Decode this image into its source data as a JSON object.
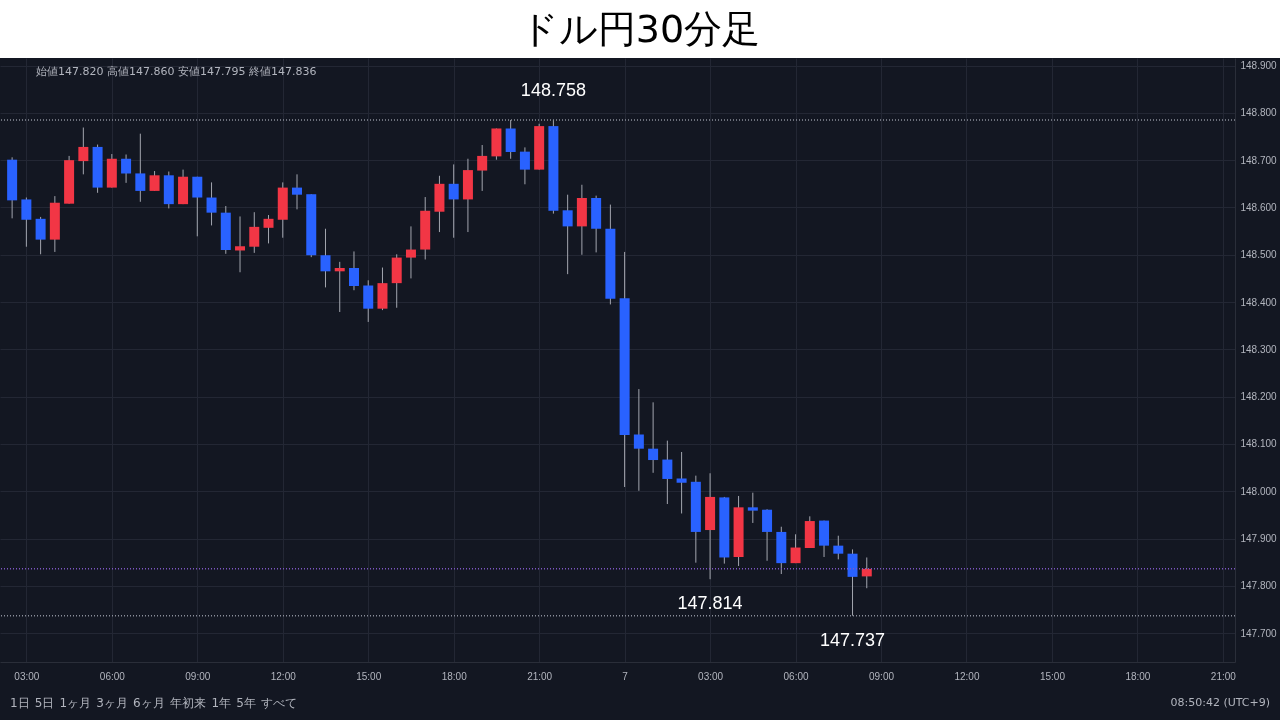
{
  "chart_data": {
    "type": "candlestick",
    "title": "ドル円30分足",
    "categories": [
      null,
      "03:00",
      null,
      null,
      null,
      null,
      null,
      "06:00",
      null,
      null,
      null,
      null,
      null,
      "09:00",
      null,
      null,
      null,
      null,
      null,
      "12:00",
      null,
      null,
      null,
      null,
      null,
      "15:00",
      null,
      null,
      null,
      null,
      null,
      "18:00",
      null,
      null,
      null,
      null,
      null,
      "21:00",
      null,
      null,
      null,
      null,
      null,
      "7",
      null,
      null,
      null,
      null,
      null,
      "03:00",
      null,
      null,
      null,
      null,
      null,
      "06:00",
      null,
      null,
      null,
      null,
      null,
      "09:00",
      null,
      null,
      null,
      null,
      null,
      "12:00",
      null,
      null,
      null,
      null,
      null,
      "15:00",
      null,
      null,
      null,
      null,
      null,
      "18:00",
      null,
      null,
      null,
      null,
      null,
      "21:00"
    ],
    "ohlc": [
      [
        148.701,
        148.706,
        148.577,
        148.615
      ],
      [
        148.617,
        148.621,
        148.517,
        148.574
      ],
      [
        148.576,
        148.58,
        148.501,
        148.532
      ],
      [
        148.532,
        148.624,
        148.506,
        148.61
      ],
      [
        148.608,
        148.709,
        148.608,
        148.7
      ],
      [
        148.698,
        148.769,
        148.67,
        148.728
      ],
      [
        148.728,
        148.733,
        148.631,
        148.642
      ],
      [
        148.642,
        148.713,
        148.642,
        148.703
      ],
      [
        148.703,
        148.712,
        148.652,
        148.672
      ],
      [
        148.672,
        148.756,
        148.612,
        148.635
      ],
      [
        148.635,
        148.677,
        148.635,
        148.668
      ],
      [
        148.668,
        148.676,
        148.598,
        148.607
      ],
      [
        148.607,
        148.68,
        148.607,
        148.665
      ],
      [
        148.665,
        148.665,
        148.539,
        148.621
      ],
      [
        148.621,
        148.653,
        148.562,
        148.589
      ],
      [
        148.589,
        148.603,
        148.502,
        148.51
      ],
      [
        148.509,
        148.581,
        148.463,
        148.518
      ],
      [
        148.517,
        148.59,
        148.504,
        148.559
      ],
      [
        148.557,
        148.584,
        148.524,
        148.576
      ],
      [
        148.574,
        148.653,
        148.536,
        148.642
      ],
      [
        148.642,
        148.67,
        148.596,
        148.627
      ],
      [
        148.628,
        148.628,
        148.495,
        148.499
      ],
      [
        148.499,
        148.555,
        148.431,
        148.465
      ],
      [
        148.465,
        148.485,
        148.379,
        148.472
      ],
      [
        148.472,
        148.507,
        148.425,
        148.434
      ],
      [
        148.435,
        148.446,
        148.358,
        148.386
      ],
      [
        148.386,
        148.473,
        148.383,
        148.44
      ],
      [
        148.44,
        148.501,
        148.388,
        148.494
      ],
      [
        148.494,
        148.56,
        148.45,
        148.511
      ],
      [
        148.511,
        148.622,
        148.49,
        148.593
      ],
      [
        148.591,
        148.667,
        148.548,
        148.65
      ],
      [
        148.65,
        148.691,
        148.536,
        148.617
      ],
      [
        148.617,
        148.703,
        148.548,
        148.679
      ],
      [
        148.678,
        148.732,
        148.635,
        148.709
      ],
      [
        148.708,
        148.767,
        148.701,
        148.767
      ],
      [
        148.767,
        148.785,
        148.703,
        148.717
      ],
      [
        148.718,
        148.727,
        148.649,
        148.68
      ],
      [
        148.68,
        148.777,
        148.68,
        148.772
      ],
      [
        148.772,
        148.785,
        148.587,
        148.593
      ],
      [
        148.594,
        148.627,
        148.459,
        148.56
      ],
      [
        148.56,
        148.648,
        148.5,
        148.62
      ],
      [
        148.62,
        148.625,
        148.505,
        148.555
      ],
      [
        148.555,
        148.606,
        148.395,
        148.407
      ],
      [
        148.408,
        148.506,
        148.009,
        148.119
      ],
      [
        148.12,
        148.216,
        148.001,
        148.09
      ],
      [
        148.09,
        148.188,
        148.039,
        148.066
      ],
      [
        148.067,
        148.107,
        147.973,
        148.026
      ],
      [
        148.027,
        148.083,
        147.953,
        148.018
      ],
      [
        148.02,
        148.033,
        147.849,
        147.914
      ],
      [
        147.918,
        148.038,
        147.814,
        147.988
      ],
      [
        147.987,
        147.988,
        147.847,
        147.86
      ],
      [
        147.861,
        147.99,
        147.842,
        147.966
      ],
      [
        147.966,
        147.997,
        147.933,
        147.959
      ],
      [
        147.961,
        147.962,
        147.853,
        147.914
      ],
      [
        147.914,
        147.925,
        147.825,
        147.848
      ],
      [
        147.848,
        147.909,
        147.848,
        147.881
      ],
      [
        147.88,
        147.947,
        147.88,
        147.937
      ],
      [
        147.938,
        147.938,
        147.861,
        147.885
      ],
      [
        147.885,
        147.906,
        147.856,
        147.868
      ],
      [
        147.868,
        147.877,
        147.737,
        147.819
      ],
      [
        147.82,
        147.86,
        147.795,
        147.836
      ],
      null,
      null,
      null,
      null,
      null,
      null,
      null,
      null,
      null,
      null,
      null,
      null,
      null,
      null,
      null,
      null,
      null,
      null,
      null,
      null,
      null,
      null,
      null,
      null,
      null
    ],
    "colors": [
      "#2962ff",
      "#2962ff",
      "#2962ff",
      "#f23645",
      "#f23645",
      "#f23645",
      "#2962ff",
      "#f23645",
      "#2962ff",
      "#2962ff",
      "#f23645",
      "#2962ff",
      "#f23645",
      "#2962ff",
      "#2962ff",
      "#2962ff",
      "#f23645",
      "#f23645",
      "#f23645",
      "#f23645",
      "#2962ff",
      "#2962ff",
      "#2962ff",
      "#f23645",
      "#2962ff",
      "#2962ff",
      "#f23645",
      "#f23645",
      "#f23645",
      "#f23645",
      "#f23645",
      "#2962ff",
      "#f23645",
      "#f23645",
      "#f23645",
      "#2962ff",
      "#2962ff",
      "#f23645",
      "#2962ff",
      "#2962ff",
      "#f23645",
      "#2962ff",
      "#2962ff",
      "#2962ff",
      "#2962ff",
      "#2962ff",
      "#2962ff",
      "#2962ff",
      "#2962ff",
      "#f23645",
      "#2962ff",
      "#f23645",
      "#2962ff",
      "#2962ff",
      "#2962ff",
      "#f23645",
      "#f23645",
      "#2962ff",
      "#2962ff",
      "#2962ff",
      "#f23645",
      null,
      null,
      null,
      null,
      null,
      null,
      null,
      null,
      null,
      null,
      null,
      null,
      null,
      null,
      null,
      null,
      null,
      null,
      null,
      null,
      null,
      null,
      null,
      null,
      null
    ],
    "ylim": [
      147.639,
      148.916
    ],
    "yticks": [
      {
        "value": 147.7,
        "label": "147.700"
      },
      {
        "value": 147.8,
        "label": "147.800"
      },
      {
        "value": 147.9,
        "label": "147.900"
      },
      {
        "value": 148,
        "label": "148.000"
      },
      {
        "value": 148.1,
        "label": "148.100"
      },
      {
        "value": 148.2,
        "label": "148.200"
      },
      {
        "value": 148.3,
        "label": "148.300"
      },
      {
        "value": 148.4,
        "label": "148.400"
      },
      {
        "value": 148.5,
        "label": "148.500"
      },
      {
        "value": 148.6,
        "label": "148.600"
      },
      {
        "value": 148.7,
        "label": "148.700"
      },
      {
        "value": 148.8,
        "label": "148.800"
      },
      {
        "value": 148.9,
        "label": "148.900"
      }
    ],
    "grid": true,
    "ref_lines": [
      {
        "axis": "y",
        "value": 148.785,
        "color": "#8a8e99",
        "line_style": "dotted"
      },
      {
        "axis": "y",
        "value": 147.737,
        "color": "#8a8e99",
        "line_style": "dotted"
      },
      {
        "axis": "y",
        "value": 147.836,
        "color": "#7e57c2",
        "line_style": "dotted"
      }
    ],
    "annotations": [
      "始値147.820 高値147.860 安値147.795 終値147.836",
      "1日",
      "5日",
      "1ヶ月",
      "3ヶ月",
      "6ヶ月",
      "年初来",
      "1年",
      "5年",
      "すべて",
      "08:50:42 (UTC+9)",
      {
        "text": "148.758",
        "y": 148.785
      },
      {
        "text": "147.814",
        "y": 147.814
      },
      {
        "text": "147.737",
        "y": 147.737
      }
    ]
  }
}
